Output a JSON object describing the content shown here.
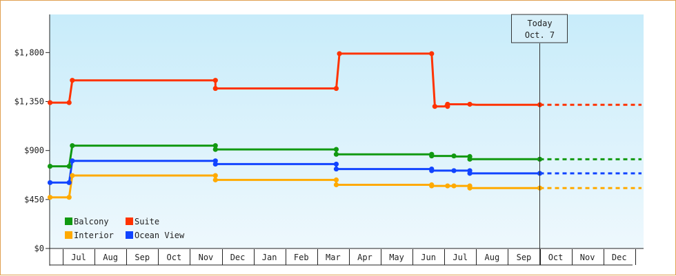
{
  "chart_data": {
    "type": "line",
    "title": "",
    "xlabel": "",
    "ylabel": "",
    "ylim": [
      0,
      2150
    ],
    "yticks": [
      {
        "value": 0,
        "label": "$0"
      },
      {
        "value": 450,
        "label": "$450"
      },
      {
        "value": 900,
        "label": "$900"
      },
      {
        "value": 1350,
        "label": "$1,350"
      },
      {
        "value": 1800,
        "label": "$1,800"
      }
    ],
    "months": [
      "Jul",
      "Aug",
      "Sep",
      "Oct",
      "Nov",
      "Dec",
      "Jan",
      "Feb",
      "Mar",
      "Apr",
      "May",
      "Jun",
      "Jul",
      "Aug",
      "Sep",
      "Oct",
      "Nov",
      "Dec"
    ],
    "x_start": -0.4,
    "x_end": 18.2,
    "today": {
      "x": 15.0,
      "line1": "Today",
      "line2": "Oct. 7"
    },
    "legend": {
      "position": "bottom-left"
    },
    "series": [
      {
        "name": "Balcony",
        "color": "#119911",
        "points": [
          [
            -0.4,
            755
          ],
          [
            0.2,
            755
          ],
          [
            0.3,
            945
          ],
          [
            4.8,
            945
          ],
          [
            4.8,
            910
          ],
          [
            8.6,
            910
          ],
          [
            8.6,
            865
          ],
          [
            11.6,
            865
          ],
          [
            11.6,
            850
          ],
          [
            12.3,
            850
          ],
          [
            12.3,
            845
          ],
          [
            12.8,
            845
          ],
          [
            12.8,
            820
          ],
          [
            15.0,
            820
          ]
        ],
        "projection_end": 18.2
      },
      {
        "name": "Suite",
        "color": "#ff3300",
        "points": [
          [
            -0.4,
            1340
          ],
          [
            0.2,
            1340
          ],
          [
            0.3,
            1545
          ],
          [
            4.8,
            1545
          ],
          [
            4.8,
            1470
          ],
          [
            8.6,
            1470
          ],
          [
            8.7,
            1790
          ],
          [
            11.6,
            1790
          ],
          [
            11.7,
            1305
          ],
          [
            12.0,
            1305
          ],
          [
            12.1,
            1325
          ],
          [
            12.8,
            1325
          ],
          [
            13.0,
            1320
          ],
          [
            15.0,
            1320
          ]
        ],
        "projection_end": 18.2
      },
      {
        "name": "Interior",
        "color": "#ffaa00",
        "points": [
          [
            -0.4,
            470
          ],
          [
            0.2,
            470
          ],
          [
            0.3,
            670
          ],
          [
            4.8,
            670
          ],
          [
            4.8,
            630
          ],
          [
            8.6,
            630
          ],
          [
            8.6,
            585
          ],
          [
            11.6,
            585
          ],
          [
            11.6,
            575
          ],
          [
            12.0,
            575
          ],
          [
            12.3,
            575
          ],
          [
            12.8,
            575
          ],
          [
            12.8,
            555
          ],
          [
            15.0,
            555
          ]
        ],
        "projection_end": 18.2
      },
      {
        "name": "Ocean View",
        "color": "#1144ff",
        "points": [
          [
            -0.4,
            605
          ],
          [
            0.2,
            605
          ],
          [
            0.3,
            805
          ],
          [
            4.8,
            805
          ],
          [
            4.8,
            775
          ],
          [
            8.6,
            775
          ],
          [
            8.6,
            730
          ],
          [
            11.6,
            730
          ],
          [
            11.6,
            715
          ],
          [
            12.3,
            715
          ],
          [
            12.3,
            715
          ],
          [
            12.8,
            715
          ],
          [
            12.8,
            690
          ],
          [
            15.0,
            690
          ]
        ],
        "projection_end": 18.2
      }
    ],
    "markers": [
      {
        "series": "Balcony",
        "points": [
          [
            -0.4,
            755
          ],
          [
            0.2,
            755
          ],
          [
            0.3,
            945
          ],
          [
            4.8,
            945
          ],
          [
            4.8,
            910
          ],
          [
            8.6,
            910
          ],
          [
            8.6,
            865
          ],
          [
            11.6,
            865
          ],
          [
            11.6,
            850
          ],
          [
            12.3,
            850
          ],
          [
            12.8,
            845
          ],
          [
            12.8,
            820
          ],
          [
            15.0,
            820
          ]
        ]
      },
      {
        "series": "Suite",
        "points": [
          [
            -0.4,
            1340
          ],
          [
            0.2,
            1340
          ],
          [
            0.3,
            1545
          ],
          [
            4.8,
            1545
          ],
          [
            4.8,
            1470
          ],
          [
            8.6,
            1470
          ],
          [
            8.7,
            1790
          ],
          [
            11.6,
            1790
          ],
          [
            11.7,
            1305
          ],
          [
            12.1,
            1305
          ],
          [
            12.1,
            1325
          ],
          [
            12.8,
            1325
          ],
          [
            15.0,
            1320
          ]
        ]
      },
      {
        "series": "Interior",
        "points": [
          [
            -0.4,
            470
          ],
          [
            0.2,
            470
          ],
          [
            0.3,
            670
          ],
          [
            4.8,
            670
          ],
          [
            4.8,
            630
          ],
          [
            8.6,
            630
          ],
          [
            8.6,
            585
          ],
          [
            11.6,
            585
          ],
          [
            11.6,
            575
          ],
          [
            12.1,
            575
          ],
          [
            12.3,
            575
          ],
          [
            12.8,
            575
          ],
          [
            12.8,
            555
          ],
          [
            15.0,
            555
          ]
        ]
      },
      {
        "series": "Ocean View",
        "points": [
          [
            -0.4,
            605
          ],
          [
            0.2,
            605
          ],
          [
            0.3,
            805
          ],
          [
            4.8,
            805
          ],
          [
            4.8,
            775
          ],
          [
            8.6,
            775
          ],
          [
            8.6,
            730
          ],
          [
            11.6,
            730
          ],
          [
            11.6,
            715
          ],
          [
            12.3,
            715
          ],
          [
            12.8,
            715
          ],
          [
            12.8,
            690
          ],
          [
            15.0,
            690
          ]
        ]
      }
    ]
  }
}
